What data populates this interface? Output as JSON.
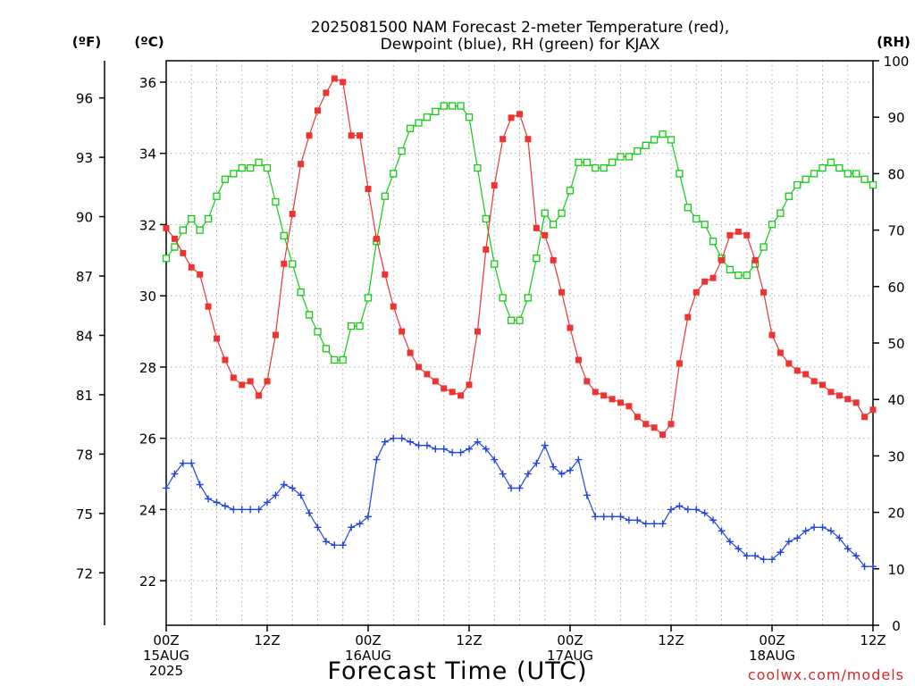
{
  "colors": {
    "temperature": "#ee3333",
    "dewpoint": "#2244dd",
    "rh": "#11cc11",
    "grid": "#aaaaaa"
  },
  "chart_data": {
    "type": "line",
    "title": [
      "2025081500 NAM Forecast 2-meter Temperature (red),",
      "Dewpoint (blue), RH (green) for KJAX"
    ],
    "xlabel": "Forecast Time (UTC)",
    "credit": "coolwx.com/models",
    "x_unit": "forecast hour (0 = 00Z 15AUG 2025)",
    "xlim": [
      0,
      84
    ],
    "x_ticks": [
      {
        "h": 0,
        "lines": [
          "00Z",
          "15AUG",
          "2025"
        ]
      },
      {
        "h": 12,
        "lines": [
          "12Z"
        ]
      },
      {
        "h": 24,
        "lines": [
          "00Z",
          "16AUG"
        ]
      },
      {
        "h": 36,
        "lines": [
          "12Z"
        ]
      },
      {
        "h": 48,
        "lines": [
          "00Z",
          "17AUG"
        ]
      },
      {
        "h": 60,
        "lines": [
          "12Z"
        ]
      },
      {
        "h": 72,
        "lines": [
          "00Z",
          "18AUG"
        ]
      },
      {
        "h": 84,
        "lines": [
          "12Z"
        ]
      }
    ],
    "axes": {
      "celsius": {
        "label": "(ºC)",
        "lim": [
          20.75,
          36.6
        ],
        "ticks": [
          22,
          24,
          26,
          28,
          30,
          32,
          34,
          36
        ]
      },
      "fahrenheit": {
        "label": "(ºF)",
        "ticks": [
          72,
          75,
          78,
          81,
          84,
          87,
          90,
          93,
          96
        ]
      },
      "rh": {
        "label": "(RH)",
        "lim": [
          0,
          100
        ],
        "ticks": [
          0,
          10,
          20,
          30,
          40,
          50,
          60,
          70,
          80,
          90,
          100
        ]
      }
    },
    "grid": true,
    "series": [
      {
        "name": "Temperature",
        "axis": "celsius",
        "marker": "filled-square",
        "values": [
          31.9,
          31.6,
          31.2,
          30.8,
          30.6,
          29.7,
          28.8,
          28.2,
          27.7,
          27.5,
          27.6,
          27.2,
          27.6,
          28.9,
          30.9,
          32.3,
          33.7,
          34.5,
          35.2,
          35.7,
          36.1,
          36.0,
          34.5,
          34.5,
          33.0,
          31.6,
          30.6,
          29.7,
          29.0,
          28.4,
          28.0,
          27.8,
          27.6,
          27.4,
          27.3,
          27.2,
          27.5,
          29.0,
          31.3,
          33.1,
          34.4,
          35.0,
          35.1,
          34.4,
          31.9,
          31.7,
          31.0,
          30.1,
          29.1,
          28.2,
          27.6,
          27.3,
          27.2,
          27.1,
          27.0,
          26.9,
          26.6,
          26.4,
          26.3,
          26.1,
          26.4,
          28.1,
          29.4,
          30.1,
          30.4,
          30.5,
          31.0,
          31.7,
          31.8,
          31.7,
          31.0,
          30.1,
          28.9,
          28.4,
          28.1,
          27.9,
          27.8,
          27.6,
          27.5,
          27.3,
          27.2,
          27.1,
          27.0,
          26.6,
          26.8
        ]
      },
      {
        "name": "Dewpoint",
        "axis": "celsius",
        "marker": "plus",
        "values": [
          24.6,
          25.0,
          25.3,
          25.3,
          24.7,
          24.3,
          24.2,
          24.1,
          24.0,
          24.0,
          24.0,
          24.0,
          24.2,
          24.4,
          24.7,
          24.6,
          24.4,
          23.9,
          23.5,
          23.1,
          23.0,
          23.0,
          23.5,
          23.6,
          23.8,
          25.4,
          25.9,
          26.0,
          26.0,
          25.9,
          25.8,
          25.8,
          25.7,
          25.7,
          25.6,
          25.6,
          25.7,
          25.9,
          25.7,
          25.4,
          25.0,
          24.6,
          24.6,
          25.0,
          25.3,
          25.8,
          25.2,
          25.0,
          25.1,
          25.4,
          24.4,
          23.8,
          23.8,
          23.8,
          23.8,
          23.7,
          23.7,
          23.6,
          23.6,
          23.6,
          24.0,
          24.1,
          24.0,
          24.0,
          23.9,
          23.7,
          23.4,
          23.1,
          22.9,
          22.7,
          22.7,
          22.6,
          22.6,
          22.8,
          23.1,
          23.2,
          23.4,
          23.5,
          23.5,
          23.4,
          23.2,
          22.9,
          22.7,
          22.4,
          22.4
        ]
      },
      {
        "name": "RH",
        "axis": "rh",
        "marker": "open-square",
        "values": [
          65,
          67,
          70,
          72,
          70,
          72,
          76,
          79,
          80,
          81,
          81,
          82,
          81,
          75,
          69,
          64,
          59,
          55,
          52,
          49,
          47,
          47,
          53,
          53,
          58,
          68,
          76,
          80,
          84,
          88,
          89,
          90,
          91,
          92,
          92,
          92,
          90,
          81,
          72,
          64,
          58,
          54,
          54,
          58,
          65,
          73,
          71,
          73,
          77,
          82,
          82,
          81,
          81,
          82,
          83,
          83,
          84,
          85,
          86,
          87,
          86,
          80,
          74,
          72,
          71,
          68,
          65,
          63,
          62,
          62,
          64,
          67,
          71,
          73,
          76,
          78,
          79,
          80,
          81,
          82,
          81,
          80,
          80,
          79,
          78
        ]
      }
    ]
  }
}
